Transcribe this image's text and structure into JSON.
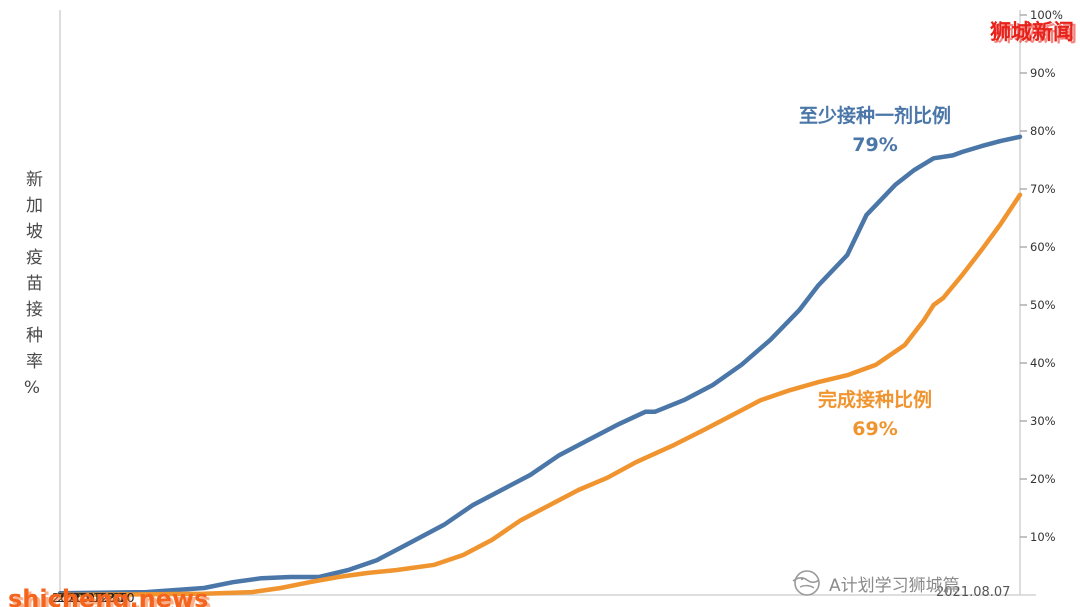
{
  "watermarks": {
    "brand_top_right": "狮城新闻",
    "site_bottom_left": "shicheng.news",
    "plan_a_text": "A计划学习狮城篇"
  },
  "axis": {
    "title_vertical": "新加坡疫苗接种率%",
    "x_start_label": "2020.12.30",
    "x_end_label": "2021.08.07"
  },
  "chart_data": {
    "type": "line",
    "title": "新加坡疫苗接种率%",
    "x_range": [
      "2020.12.30",
      "2021.08.07"
    ],
    "ylim": [
      0,
      100
    ],
    "grid": false,
    "legend_position": "inline-annotations",
    "ytick_labels": [
      "10%",
      "20%",
      "30%",
      "40%",
      "50%",
      "60%",
      "70%",
      "80%",
      "90%",
      "100%"
    ],
    "series": [
      {
        "name": "至少接种一剂比例",
        "final_value_label": "79%",
        "final_value": 79,
        "color": "#4a76a8",
        "points": [
          [
            0,
            0.3
          ],
          [
            9,
            0.5
          ],
          [
            15,
            1.2
          ],
          [
            18,
            2.2
          ],
          [
            21,
            2.9
          ],
          [
            24,
            3.1
          ],
          [
            27,
            3.1
          ],
          [
            30,
            4.3
          ],
          [
            33,
            6
          ],
          [
            36,
            8.6
          ],
          [
            40,
            12.1
          ],
          [
            43,
            15.5
          ],
          [
            46,
            18.1
          ],
          [
            49,
            20.7
          ],
          [
            52,
            24.1
          ],
          [
            55,
            26.7
          ],
          [
            58,
            29.3
          ],
          [
            61,
            31.6
          ],
          [
            62,
            31.6
          ],
          [
            65,
            33.6
          ],
          [
            68,
            36.2
          ],
          [
            71,
            39.7
          ],
          [
            74,
            44
          ],
          [
            77,
            49.1
          ],
          [
            79,
            53.4
          ],
          [
            82,
            58.6
          ],
          [
            84,
            65.5
          ],
          [
            87,
            70.7
          ],
          [
            89,
            73.3
          ],
          [
            91,
            75.3
          ],
          [
            93,
            75.8
          ],
          [
            94,
            76.4
          ],
          [
            96,
            77.4
          ],
          [
            98,
            78.3
          ],
          [
            100,
            79
          ]
        ]
      },
      {
        "name": "完成接种比例",
        "final_value_label": "69%",
        "final_value": 69,
        "color": "#f0942f",
        "points": [
          [
            0,
            0
          ],
          [
            15,
            0.2
          ],
          [
            20,
            0.5
          ],
          [
            23,
            1.2
          ],
          [
            26,
            2.2
          ],
          [
            29,
            3.1
          ],
          [
            32,
            3.8
          ],
          [
            35,
            4.3
          ],
          [
            39,
            5.2
          ],
          [
            42,
            6.9
          ],
          [
            45,
            9.5
          ],
          [
            48,
            12.9
          ],
          [
            51,
            15.5
          ],
          [
            54,
            18.1
          ],
          [
            57,
            20.2
          ],
          [
            60,
            22.9
          ],
          [
            64,
            25.9
          ],
          [
            67,
            28.4
          ],
          [
            70,
            31
          ],
          [
            73,
            33.6
          ],
          [
            76,
            35.3
          ],
          [
            79,
            36.7
          ],
          [
            82,
            37.9
          ],
          [
            85,
            39.7
          ],
          [
            88,
            43.1
          ],
          [
            90,
            47.4
          ],
          [
            91,
            50
          ],
          [
            92,
            51.2
          ],
          [
            94,
            55.2
          ],
          [
            96,
            59.5
          ],
          [
            98,
            64
          ],
          [
            100,
            69
          ]
        ]
      }
    ]
  }
}
